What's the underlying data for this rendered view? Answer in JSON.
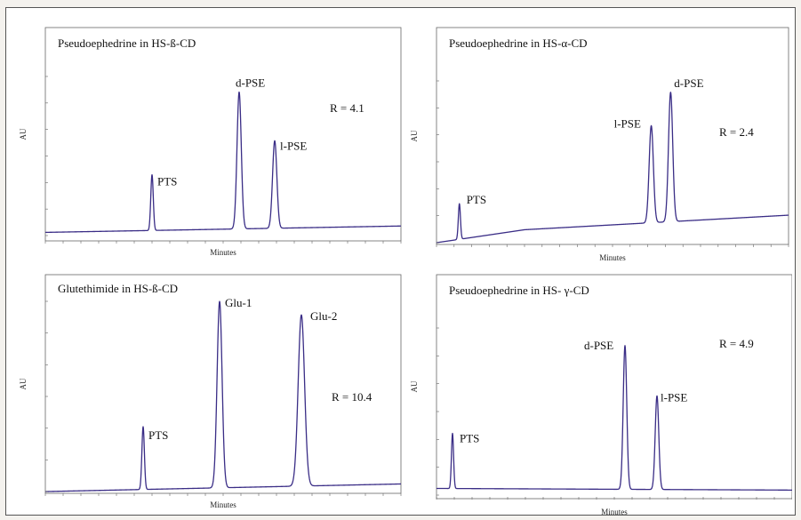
{
  "figure": {
    "background": "#ffffff",
    "border_color": "#555555",
    "trace_color": "#3a2d86"
  },
  "chart_data": [
    {
      "type": "line",
      "title": "Pseudoephedrine in HS-ß-CD",
      "xlabel": "Minutes",
      "ylabel": "AU",
      "xlim": [
        0,
        10
      ],
      "ylim": [
        0,
        1
      ],
      "baseline_start": 0.02,
      "baseline_end": 0.06,
      "baseline_hump": 0,
      "peaks": [
        {
          "label": "PTS",
          "x": 3.0,
          "height": 0.35,
          "width": 0.035
        },
        {
          "label": "d-PSE",
          "x": 5.45,
          "height": 0.86,
          "width": 0.06
        },
        {
          "label": "l-PSE",
          "x": 6.45,
          "height": 0.55,
          "width": 0.06
        }
      ],
      "annotations": [
        {
          "text": "R = 4.1"
        }
      ]
    },
    {
      "type": "line",
      "title": "Pseudoephedrine in HS-α-CD",
      "xlabel": "Minutes",
      "ylabel": "AU",
      "xlim": [
        0,
        10
      ],
      "ylim": [
        0,
        1
      ],
      "baseline_start": 0.0,
      "baseline_end": 0.12,
      "baseline_hump": 0.05,
      "peaks": [
        {
          "label": "PTS",
          "x": 0.65,
          "height": 0.22,
          "width": 0.03
        },
        {
          "label": "l-PSE",
          "x": 6.1,
          "height": 0.6,
          "width": 0.06
        },
        {
          "label": "d-PSE",
          "x": 6.65,
          "height": 0.8,
          "width": 0.06
        }
      ],
      "annotations": [
        {
          "text": "R = 2.4"
        }
      ]
    },
    {
      "type": "line",
      "title": "Glutethimide in HS-ß-CD",
      "xlabel": "Minutes",
      "ylabel": "AU",
      "xlim": [
        0,
        10
      ],
      "ylim": [
        0,
        1
      ],
      "baseline_start": 0.0,
      "baseline_end": 0.04,
      "baseline_hump": 0,
      "peaks": [
        {
          "label": "PTS",
          "x": 2.75,
          "height": 0.33,
          "width": 0.035
        },
        {
          "label": "Glu-1",
          "x": 4.9,
          "height": 0.98,
          "width": 0.07
        },
        {
          "label": "Glu-2",
          "x": 7.2,
          "height": 0.9,
          "width": 0.09
        }
      ],
      "annotations": [
        {
          "text": "R = 10.4"
        }
      ]
    },
    {
      "type": "line",
      "title": "Pseudoephedrine in HS- γ-CD",
      "xlabel": "Minutes",
      "ylabel": "AU",
      "xlim": [
        0,
        10
      ],
      "ylim": [
        0,
        1
      ],
      "baseline_start": 0.04,
      "baseline_end": 0.03,
      "baseline_hump": 0,
      "peaks": [
        {
          "label": "PTS",
          "x": 0.45,
          "height": 0.33,
          "width": 0.03
        },
        {
          "label": "d-PSE",
          "x": 5.3,
          "height": 0.86,
          "width": 0.05
        },
        {
          "label": "l-PSE",
          "x": 6.2,
          "height": 0.56,
          "width": 0.05
        }
      ],
      "annotations": [
        {
          "text": "R = 4.9"
        }
      ]
    }
  ]
}
